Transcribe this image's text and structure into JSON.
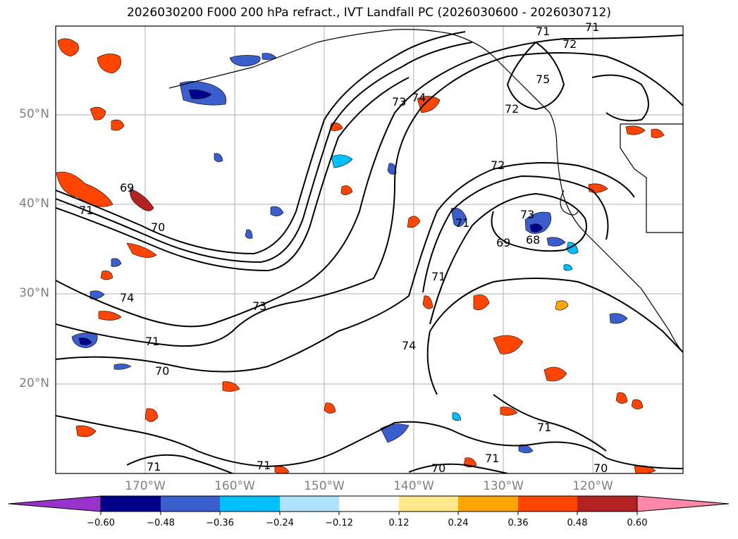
{
  "title": "2026030200 F000 200 hPa refract., IVT Landfall PC (2026030600 - 2026030712)",
  "latitude_labels": [
    "50°N",
    "40°N",
    "30°N",
    "20°N"
  ],
  "longitude_labels": [
    "170°W",
    "160°W",
    "150°W",
    "140°W",
    "130°W",
    "120°W"
  ],
  "colorbar": {
    "ticks": [
      "−0.60",
      "−0.48",
      "−0.36",
      "−0.24",
      "−0.12",
      "0.12",
      "0.24",
      "0.36",
      "0.48",
      "0.60"
    ],
    "colors": [
      "#9932CC",
      "#00008B",
      "#3A5FCD",
      "#00BFFF",
      "#B0E2FF",
      "#FFFFFF",
      "#FFE88A",
      "#FFA500",
      "#FF4500",
      "#B22222",
      "#FF88AA"
    ]
  },
  "contour_labels": [
    "71",
    "71",
    "72",
    "75",
    "73",
    "74",
    "72",
    "72",
    "69",
    "71",
    "70",
    "74",
    "73",
    "71",
    "73",
    "69",
    "68",
    "71",
    "74",
    "71",
    "70",
    "71",
    "71",
    "71",
    "70",
    "71",
    "70"
  ],
  "colors": {
    "frame": "#000000",
    "grid": "#b0b0b0",
    "contour": "#000000",
    "ocean": "#ffffff"
  }
}
